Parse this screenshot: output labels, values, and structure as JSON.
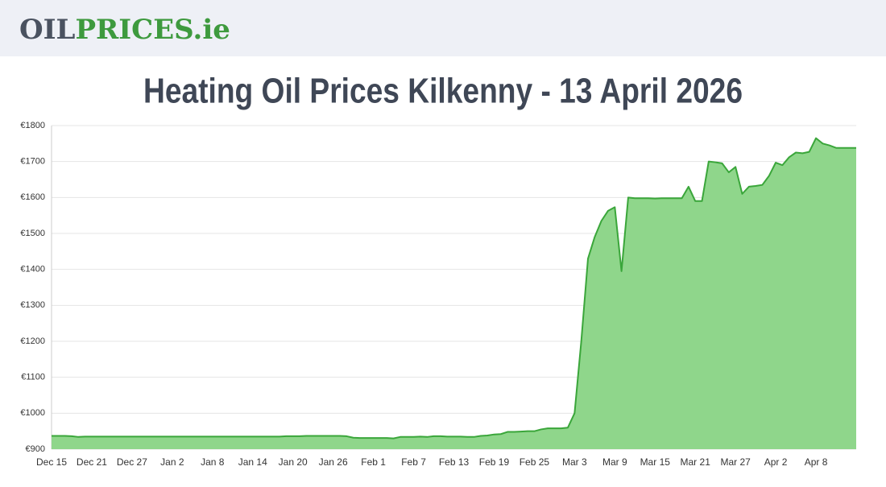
{
  "header": {
    "logo_dark": "OIL",
    "logo_green": "PRICES.ie"
  },
  "chart_data": {
    "type": "area",
    "title": "Heating Oil Prices Kilkenny - 13 April 2026",
    "categories": [
      "Dec 15",
      null,
      null,
      null,
      null,
      null,
      "Dec 21",
      null,
      null,
      null,
      null,
      null,
      "Dec 27",
      null,
      null,
      null,
      null,
      null,
      "Jan 2",
      null,
      null,
      null,
      null,
      null,
      "Jan 8",
      null,
      null,
      null,
      null,
      null,
      "Jan 14",
      null,
      null,
      null,
      null,
      null,
      "Jan 20",
      null,
      null,
      null,
      null,
      null,
      "Jan 26",
      null,
      null,
      null,
      null,
      null,
      "Feb 1",
      null,
      null,
      null,
      null,
      null,
      "Feb 7",
      null,
      null,
      null,
      null,
      null,
      "Feb 13",
      null,
      null,
      null,
      null,
      null,
      "Feb 19",
      null,
      null,
      null,
      null,
      null,
      "Feb 25",
      null,
      null,
      null,
      null,
      null,
      "Mar 3",
      null,
      null,
      null,
      null,
      null,
      "Mar 9",
      null,
      null,
      null,
      null,
      null,
      "Mar 15",
      null,
      null,
      null,
      null,
      null,
      "Mar 21",
      null,
      null,
      null,
      null,
      null,
      "Mar 27",
      null,
      null,
      null,
      null,
      null,
      "Apr 2",
      null,
      null,
      null,
      null,
      null,
      "Apr 8",
      null,
      null,
      null,
      null,
      null,
      null
    ],
    "values": [
      937,
      937,
      937,
      936,
      934,
      935,
      935,
      935,
      935,
      935,
      935,
      935,
      935,
      935,
      935,
      935,
      935,
      935,
      935,
      935,
      935,
      935,
      935,
      935,
      935,
      935,
      935,
      935,
      935,
      935,
      935,
      935,
      935,
      935,
      935,
      936,
      936,
      936,
      937,
      937,
      937,
      937,
      937,
      937,
      936,
      932,
      931,
      931,
      931,
      931,
      931,
      930,
      934,
      934,
      934,
      935,
      934,
      936,
      936,
      935,
      935,
      935,
      934,
      934,
      937,
      938,
      941,
      942,
      948,
      948,
      949,
      950,
      950,
      955,
      958,
      958,
      958,
      960,
      1000,
      1200,
      1430,
      1490,
      1535,
      1563,
      1573,
      1395,
      1600,
      1598,
      1598,
      1598,
      1597,
      1598,
      1598,
      1598,
      1598,
      1630,
      1590,
      1590,
      1700,
      1698,
      1695,
      1670,
      1685,
      1610,
      1630,
      1632,
      1635,
      1660,
      1697,
      1690,
      1712,
      1725,
      1723,
      1727,
      1765,
      1750,
      1745,
      1738,
      1738,
      1738,
      1738
    ],
    "color": "#3aa63a",
    "fill_color": "#8fd68b",
    "ylim": [
      900,
      1800
    ],
    "yticks": [
      {
        "value": 900,
        "label": "€900"
      },
      {
        "value": 1000,
        "label": "€1000"
      },
      {
        "value": 1100,
        "label": "€1100"
      },
      {
        "value": 1200,
        "label": "€1200"
      },
      {
        "value": 1300,
        "label": "€1300"
      },
      {
        "value": 1400,
        "label": "€1400"
      },
      {
        "value": 1500,
        "label": "€1500"
      },
      {
        "value": 1600,
        "label": "€1600"
      },
      {
        "value": 1700,
        "label": "€1700"
      },
      {
        "value": 1800,
        "label": "€1800"
      }
    ],
    "grid": true
  }
}
